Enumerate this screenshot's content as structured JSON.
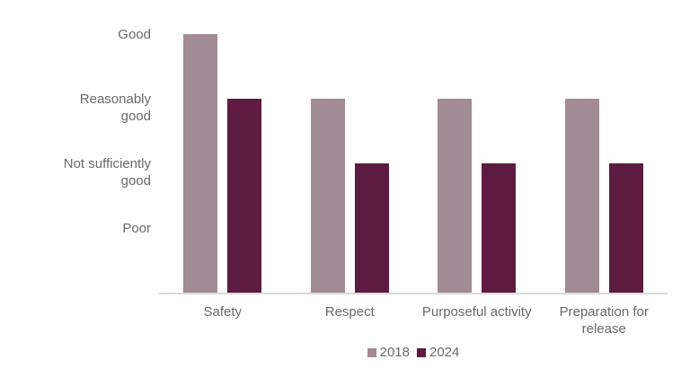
{
  "colors": {
    "background": "#ffffff",
    "text": "#696969",
    "axis_line": "#d9d9d9",
    "series_2018": "#a28b94",
    "series_2024": "#5e1b40"
  },
  "chart_data": {
    "type": "bar",
    "categories": [
      "Safety",
      "Respect",
      "Purposeful activity",
      "Preparation for release"
    ],
    "series": [
      {
        "name": "2018",
        "color": "#a28b94",
        "values": [
          4,
          3,
          3,
          3
        ],
        "value_labels": [
          "Good",
          "Reasonably good",
          "Reasonably good",
          "Reasonably good"
        ]
      },
      {
        "name": "2024",
        "color": "#5e1b40",
        "values": [
          3,
          2,
          2,
          2
        ],
        "value_labels": [
          "Reasonably good",
          "Not sufficiently good",
          "Not sufficiently good",
          "Not sufficiently good"
        ]
      }
    ],
    "yticks": [
      {
        "value": 4,
        "label": "Good"
      },
      {
        "value": 3,
        "label": "Reasonably\ngood"
      },
      {
        "value": 2,
        "label": "Not sufficiently\ngood"
      },
      {
        "value": 1,
        "label": "Poor"
      }
    ],
    "ylim": [
      0,
      4
    ],
    "xlabel": "",
    "ylabel": "",
    "grid": false,
    "legend_position": "bottom-center"
  }
}
